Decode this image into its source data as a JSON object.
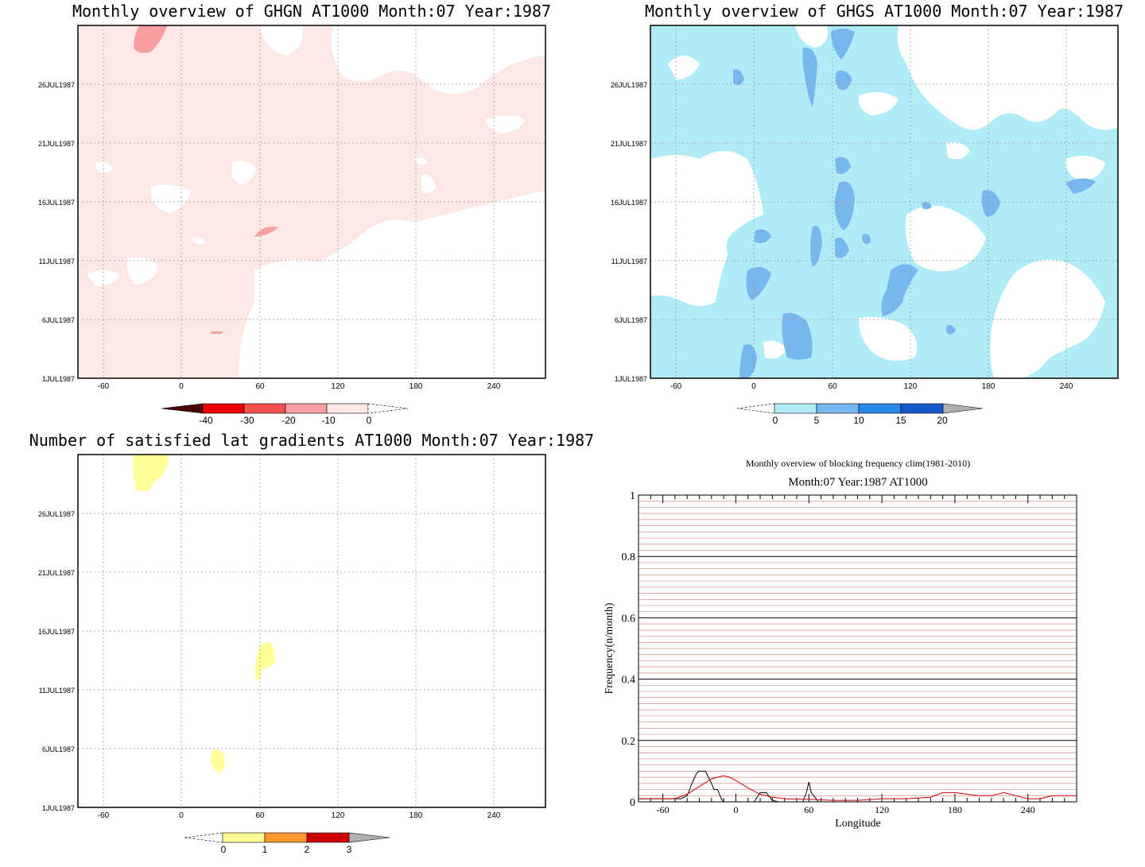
{
  "panels": [
    {
      "id": "ghgn",
      "title": "Monthly overview of GHGN AT1000 Month:07 Year:1987",
      "dates": [
        "1JUL1987",
        "6JUL1987",
        "11JUL1987",
        "16JUL1987",
        "21JUL1987",
        "26JUL1987"
      ],
      "lons": [
        "-60",
        "0",
        "60",
        "120",
        "180",
        "240"
      ],
      "colorbar": {
        "labels": [
          "-40",
          "-30",
          "-20",
          "-10",
          "0"
        ],
        "colors": [
          "#4a0000",
          "#e80000",
          "#f25050",
          "#f8a0a0",
          "#fde8e6"
        ]
      }
    },
    {
      "id": "ghgs",
      "title": "Monthly overview of GHGS AT1000 Month:07 Year:1987",
      "dates": [
        "1JUL1987",
        "6JUL1987",
        "11JUL1987",
        "16JUL1987",
        "21JUL1987",
        "26JUL1987"
      ],
      "lons": [
        "-60",
        "0",
        "60",
        "120",
        "180",
        "240"
      ],
      "colorbar": {
        "labels": [
          "0",
          "5",
          "10",
          "15",
          "20"
        ],
        "colors": [
          "#b0ecf6",
          "#78b6f0",
          "#2c86e8",
          "#1558c8",
          "#b0b0b0"
        ]
      }
    },
    {
      "id": "grad",
      "title": "Number of satisfied lat gradients AT1000 Month:07 Year:1987",
      "dates": [
        "1JUL1987",
        "6JUL1987",
        "11JUL1987",
        "16JUL1987",
        "21JUL1987",
        "26JUL1987"
      ],
      "lons": [
        "-60",
        "0",
        "60",
        "120",
        "180",
        "240"
      ],
      "colorbar": {
        "labels": [
          "0",
          "1",
          "2",
          "3"
        ],
        "colors": [
          "#fffe98",
          "#ff9830",
          "#cc0000",
          "#b0b0b0"
        ]
      }
    }
  ],
  "chart_data": {
    "type": "line",
    "title": "Monthly overview of blocking frequency clim(1981-2010)",
    "subtitle": "Month:07 Year:1987  AT1000",
    "xlabel": "Longitude",
    "ylabel": "Frequency(n/month)",
    "xlim": [
      -80,
      280
    ],
    "ylim": [
      0,
      1
    ],
    "xticks": [
      "-60",
      "0",
      "60",
      "120",
      "180",
      "240"
    ],
    "yticks": [
      "0",
      "0.2",
      "0.4",
      "0.6",
      "0.8",
      "1"
    ],
    "series": [
      {
        "color": "#000000",
        "x": [
          -80,
          -60,
          -45,
          -40,
          -35,
          -32,
          -30,
          -25,
          -20,
          -18,
          -15,
          -12,
          -10,
          -5,
          0,
          5,
          10,
          15,
          20,
          25,
          30,
          35,
          40,
          55,
          58,
          60,
          62,
          64,
          68,
          75,
          90,
          120,
          150,
          180,
          210,
          240,
          270
        ],
        "y": [
          0.01,
          0.01,
          0.01,
          0.02,
          0.07,
          0.095,
          0.1,
          0.1,
          0.06,
          0.04,
          0.04,
          0.01,
          0,
          0,
          0,
          0,
          0,
          0,
          0.03,
          0.03,
          0.005,
          0,
          0,
          0,
          0.03,
          0.065,
          0.03,
          0.02,
          0,
          0,
          0,
          0,
          0,
          0,
          0,
          0,
          0
        ]
      },
      {
        "color": "#cc0000",
        "x": [
          -80,
          -60,
          -50,
          -40,
          -30,
          -20,
          -10,
          -5,
          0,
          10,
          20,
          30,
          40,
          60,
          80,
          100,
          120,
          140,
          160,
          170,
          180,
          190,
          200,
          210,
          220,
          230,
          240,
          250,
          260,
          270,
          280
        ],
        "y": [
          0.01,
          0.01,
          0.01,
          0.025,
          0.05,
          0.075,
          0.085,
          0.08,
          0.07,
          0.045,
          0.025,
          0.015,
          0.01,
          0.008,
          0.005,
          0.005,
          0.01,
          0.01,
          0.015,
          0.03,
          0.03,
          0.025,
          0.02,
          0.02,
          0.03,
          0.02,
          0.01,
          0.01,
          0.02,
          0.02,
          0.02
        ]
      }
    ]
  }
}
